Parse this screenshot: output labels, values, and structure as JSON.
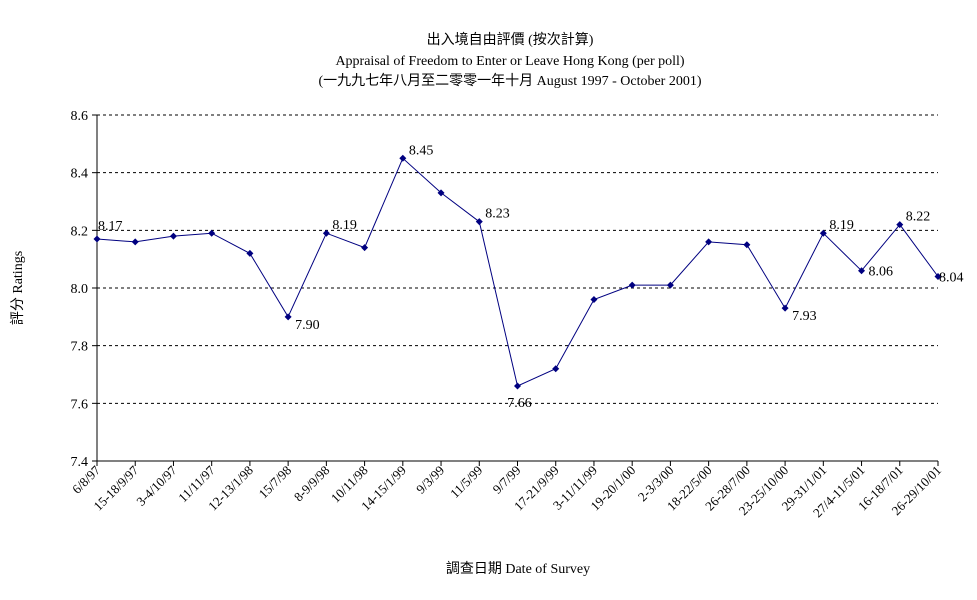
{
  "chart_data": {
    "type": "line",
    "title": "出入境自由評價 (按次計算)",
    "subtitle": "Appraisal of Freedom to Enter or Leave Hong Kong (per poll)",
    "subtitle2": "(一九九七年八月至二零零一年十月 August 1997 - October 2001)",
    "xlabel": "調查日期 Date of Survey",
    "ylabel": "評分 Ratings",
    "ylim": [
      7.4,
      8.6
    ],
    "yticks": [
      "7.4",
      "7.6",
      "7.8",
      "8.0",
      "8.2",
      "8.4",
      "8.6"
    ],
    "grid": "horizontal dashed",
    "series_color": "#000080",
    "categories": [
      "6/8/97",
      "15-18/9/97",
      "3-4/10/97",
      "11/11/97",
      "12-13/1/98",
      "15/7/98",
      "8-9/9/98",
      "10/11/98",
      "14-15/1/99",
      "9/3/99",
      "11/5/99",
      "9/7/99",
      "17-21/9/99",
      "3-11/11/99",
      "19-20/1/00",
      "2-3/3/00",
      "18-22/5/00",
      "26-28/7/00",
      "23-25/10/00",
      "29-31/1/01",
      "27/4-11/5/01",
      "16-18/7/01",
      "26-29/10/01"
    ],
    "values": [
      8.17,
      8.16,
      8.18,
      8.19,
      8.12,
      7.9,
      8.19,
      8.14,
      8.45,
      8.33,
      8.23,
      7.66,
      7.72,
      7.96,
      8.01,
      8.01,
      8.16,
      8.15,
      7.93,
      8.19,
      8.06,
      8.22,
      8.04
    ],
    "data_labels": [
      {
        "index": 0,
        "text": "8.17"
      },
      {
        "index": 5,
        "text": "7.90"
      },
      {
        "index": 6,
        "text": "8.19"
      },
      {
        "index": 8,
        "text": "8.45"
      },
      {
        "index": 10,
        "text": "8.23"
      },
      {
        "index": 11,
        "text": "7.66"
      },
      {
        "index": 18,
        "text": "7.93"
      },
      {
        "index": 19,
        "text": "8.19"
      },
      {
        "index": 20,
        "text": "8.06"
      },
      {
        "index": 21,
        "text": "8.22"
      },
      {
        "index": 22,
        "text": "8.04"
      }
    ]
  }
}
